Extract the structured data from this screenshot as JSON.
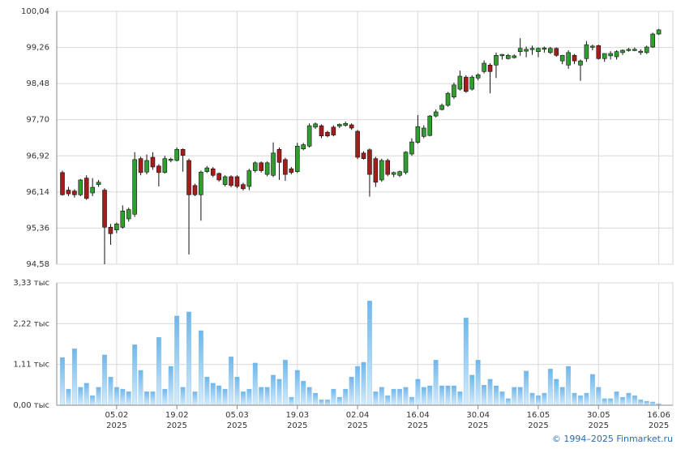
{
  "chart_data": [
    {
      "type": "candlestick",
      "open": [
        96.56,
        96.18,
        96.16,
        96.08,
        96.44,
        96.12,
        96.3,
        96.18,
        95.38,
        95.32,
        95.38,
        95.56,
        95.66,
        96.86,
        96.57,
        96.89,
        96.7,
        96.56,
        96.82,
        96.82,
        97.06,
        96.82,
        96.28,
        96.08,
        96.58,
        96.64,
        96.54,
        96.3,
        96.47,
        96.47,
        96.3,
        96.26,
        96.6,
        96.77,
        96.52,
        96.5,
        97.06,
        96.84,
        96.64,
        96.58,
        97.07,
        97.13,
        97.54,
        97.57,
        97.43,
        97.54,
        97.56,
        97.58,
        97.59,
        97.45,
        96.98,
        97.05,
        96.86,
        96.4,
        96.82,
        96.52,
        96.5,
        96.56,
        96.96,
        97.21,
        97.34,
        97.36,
        97.78,
        97.92,
        98.01,
        98.19,
        98.36,
        98.62,
        98.36,
        98.6,
        98.74,
        98.88,
        98.88,
        99.08,
        99.02,
        99.04,
        99.17,
        99.18,
        99.22,
        99.17,
        99.22,
        99.15,
        99.24,
        98.97,
        98.88,
        99.09,
        98.88,
        99.02,
        99.27,
        99.3,
        99.02,
        99.08,
        99.06,
        99.15,
        99.2,
        99.2,
        99.15,
        99.15,
        99.27,
        99.55
      ],
      "high": [
        96.6,
        96.25,
        96.2,
        96.42,
        96.5,
        96.44,
        96.4,
        96.22,
        95.45,
        95.48,
        95.85,
        95.8,
        97.0,
        96.9,
        96.95,
        97.0,
        96.74,
        96.92,
        96.88,
        97.1,
        97.08,
        96.86,
        96.32,
        96.6,
        96.7,
        96.68,
        96.56,
        96.5,
        96.5,
        96.5,
        96.34,
        96.64,
        96.8,
        96.8,
        96.8,
        97.21,
        97.1,
        96.88,
        96.68,
        97.2,
        97.2,
        97.62,
        97.64,
        97.6,
        97.46,
        97.58,
        97.62,
        97.66,
        97.62,
        97.48,
        97.02,
        97.08,
        96.9,
        96.86,
        96.86,
        96.58,
        96.6,
        97.02,
        97.3,
        97.8,
        97.58,
        97.8,
        97.92,
        98.05,
        98.3,
        98.5,
        98.76,
        98.66,
        98.66,
        98.7,
        98.98,
        98.92,
        99.15,
        99.12,
        99.12,
        99.11,
        99.46,
        99.28,
        99.3,
        99.26,
        99.28,
        99.27,
        99.26,
        99.1,
        99.2,
        99.12,
        99.0,
        99.4,
        99.32,
        99.32,
        99.13,
        99.18,
        99.2,
        99.22,
        99.25,
        99.26,
        99.22,
        99.3,
        99.58,
        99.66
      ],
      "low": [
        96.06,
        96.05,
        96.02,
        96.05,
        95.97,
        96.05,
        96.25,
        94.58,
        95.0,
        95.25,
        95.35,
        95.5,
        95.6,
        96.5,
        96.52,
        96.62,
        96.26,
        96.54,
        96.78,
        96.8,
        96.58,
        94.79,
        96.05,
        95.52,
        96.55,
        96.46,
        96.36,
        96.26,
        96.24,
        96.22,
        96.17,
        96.18,
        96.56,
        96.56,
        96.48,
        96.46,
        96.4,
        96.38,
        96.52,
        96.55,
        97.04,
        97.1,
        97.5,
        97.3,
        97.32,
        97.34,
        97.52,
        97.55,
        97.48,
        96.85,
        96.84,
        96.04,
        96.25,
        96.36,
        96.48,
        96.46,
        96.46,
        96.52,
        96.92,
        97.18,
        97.3,
        97.34,
        97.75,
        97.9,
        97.98,
        98.15,
        98.33,
        98.28,
        98.33,
        98.55,
        98.7,
        98.27,
        98.6,
        99.0,
        99.0,
        99.02,
        99.08,
        99.05,
        99.1,
        99.05,
        99.15,
        99.12,
        99.06,
        98.9,
        98.8,
        98.9,
        98.54,
        98.95,
        99.2,
        99.0,
        98.95,
        99.0,
        99.0,
        99.1,
        99.17,
        99.18,
        99.1,
        99.12,
        99.25,
        99.53
      ],
      "close": [
        96.08,
        96.1,
        96.08,
        96.4,
        96.0,
        96.24,
        96.35,
        95.38,
        95.24,
        95.45,
        95.73,
        95.76,
        96.84,
        96.56,
        96.82,
        96.68,
        96.56,
        96.86,
        96.85,
        97.06,
        96.93,
        96.08,
        96.08,
        96.57,
        96.66,
        96.5,
        96.4,
        96.47,
        96.28,
        96.26,
        96.21,
        96.6,
        96.77,
        96.6,
        96.77,
        96.98,
        96.78,
        96.52,
        96.56,
        97.13,
        97.16,
        97.57,
        97.61,
        97.35,
        97.35,
        97.37,
        97.6,
        97.62,
        97.52,
        96.89,
        96.86,
        96.52,
        96.35,
        96.82,
        96.52,
        96.56,
        96.58,
        97.0,
        97.22,
        97.55,
        97.52,
        97.78,
        97.87,
        98.01,
        98.27,
        98.45,
        98.64,
        98.31,
        98.62,
        98.67,
        98.92,
        98.74,
        99.09,
        99.11,
        99.09,
        99.08,
        99.24,
        99.22,
        99.24,
        99.24,
        99.25,
        99.24,
        99.09,
        99.09,
        99.15,
        98.97,
        98.97,
        99.32,
        99.29,
        99.02,
        99.13,
        99.13,
        99.17,
        99.2,
        99.22,
        99.22,
        99.18,
        99.27,
        99.55,
        99.64
      ],
      "up_color": "#2f9e2f",
      "down_color": "#a51c1c",
      "wick_color": "#111111",
      "ylim": [
        94.58,
        100.04
      ],
      "yticks": [
        {
          "value": 94.58,
          "label": "94,58"
        },
        {
          "value": 95.36,
          "label": "95,36"
        },
        {
          "value": 96.14,
          "label": "96,14"
        },
        {
          "value": 96.92,
          "label": "96,92"
        },
        {
          "value": 97.7,
          "label": "97,70"
        },
        {
          "value": 98.48,
          "label": "98,48"
        },
        {
          "value": 99.26,
          "label": "99,26"
        },
        {
          "value": 100.04,
          "label": "100,04"
        }
      ],
      "grid": true
    },
    {
      "type": "bar",
      "categories": [
        null,
        null,
        null,
        null,
        null,
        null,
        null,
        null,
        null,
        [
          "05.02",
          "2025"
        ],
        null,
        null,
        null,
        null,
        null,
        null,
        null,
        null,
        null,
        [
          "19.02",
          "2025"
        ],
        null,
        null,
        null,
        null,
        null,
        null,
        null,
        null,
        null,
        [
          "05.03",
          "2025"
        ],
        null,
        null,
        null,
        null,
        null,
        null,
        null,
        null,
        null,
        [
          "19.03",
          "2025"
        ],
        null,
        null,
        null,
        null,
        null,
        null,
        null,
        null,
        null,
        [
          "02.04",
          "2025"
        ],
        null,
        null,
        null,
        null,
        null,
        null,
        null,
        null,
        null,
        [
          "16.04",
          "2025"
        ],
        null,
        null,
        null,
        null,
        null,
        null,
        null,
        null,
        null,
        [
          "30.04",
          "2025"
        ],
        null,
        null,
        null,
        null,
        null,
        null,
        null,
        null,
        null,
        [
          "16.05",
          "2025"
        ],
        null,
        null,
        null,
        null,
        null,
        null,
        null,
        null,
        null,
        [
          "30.05",
          "2025"
        ],
        null,
        null,
        null,
        null,
        null,
        null,
        null,
        null,
        null,
        [
          "16.06",
          "2025"
        ]
      ],
      "values": [
        1.3,
        0.44,
        1.54,
        0.49,
        0.6,
        0.26,
        0.49,
        1.37,
        0.77,
        0.49,
        0.44,
        0.37,
        1.65,
        0.95,
        0.37,
        0.37,
        1.85,
        0.44,
        1.06,
        2.43,
        0.49,
        2.54,
        0.37,
        2.03,
        0.77,
        0.6,
        0.53,
        0.44,
        1.32,
        0.77,
        0.37,
        0.44,
        1.15,
        0.49,
        0.49,
        0.82,
        0.71,
        1.23,
        0.22,
        0.95,
        0.66,
        0.49,
        0.33,
        0.15,
        0.15,
        0.44,
        0.22,
        0.44,
        0.77,
        1.06,
        1.17,
        2.84,
        0.37,
        0.49,
        0.26,
        0.44,
        0.44,
        0.49,
        0.22,
        0.71,
        0.49,
        0.53,
        1.23,
        0.53,
        0.53,
        0.53,
        0.37,
        2.38,
        0.82,
        1.23,
        0.55,
        0.71,
        0.53,
        0.37,
        0.18,
        0.49,
        0.49,
        0.93,
        0.33,
        0.26,
        0.33,
        0.99,
        0.71,
        0.49,
        1.06,
        0.33,
        0.26,
        0.33,
        0.84,
        0.49,
        0.18,
        0.18,
        0.37,
        0.22,
        0.33,
        0.26,
        0.15,
        0.11,
        0.09,
        0.04
      ],
      "color": "#86c2ee",
      "ylim": [
        0,
        3.33
      ],
      "yticks": [
        {
          "value": 0,
          "label": "0,00 тыс"
        },
        {
          "value": 1.11,
          "label": "1,11 тыс"
        },
        {
          "value": 2.22,
          "label": "2,22 тыс"
        },
        {
          "value": 3.33,
          "label": "3,33 тыс"
        }
      ],
      "grid": true
    }
  ],
  "footer": "© 1994–2025 Finmarket.ru"
}
